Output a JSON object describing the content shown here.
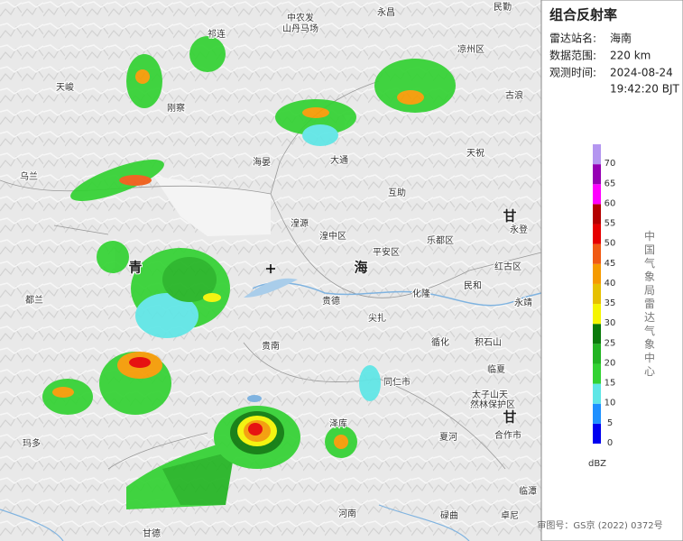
{
  "panel": {
    "title": "组合反射率",
    "rows": [
      [
        "雷达站名:",
        "海南"
      ],
      [
        "数据范围:",
        "220 km"
      ],
      [
        "观测时间:",
        "2024-08-24",
        "19:42:20 BJT"
      ]
    ],
    "legend": {
      "ticks": [
        0,
        5,
        10,
        15,
        20,
        25,
        30,
        35,
        40,
        45,
        50,
        55,
        60,
        65,
        70
      ],
      "colors": [
        "#0000f0",
        "#1e90ff",
        "#5ee6e6",
        "#32d232",
        "#22b422",
        "#0a7a0a",
        "#f5f500",
        "#e6c000",
        "#f59a00",
        "#f05a14",
        "#e60000",
        "#b40000",
        "#ff00ff",
        "#9600b4",
        "#b496f0"
      ],
      "unit": "dBZ"
    },
    "org": "中国气象局雷达气象中心",
    "footer": "审图号：GS京 (2022) 0372号"
  },
  "places": [
    "中农发",
    "山丹马场",
    "永昌",
    "民勤",
    "祁连",
    "凉州区",
    "天峻",
    "刚察",
    "古浪",
    "天祝",
    "海晏",
    "大通",
    "乌兰",
    "互助",
    "湟源",
    "湟中区",
    "永登",
    "乐都区",
    "平安区",
    "红古区",
    "民和",
    "都兰",
    "贵德",
    "化隆",
    "永靖",
    "尖扎",
    "贵南",
    "循化",
    "积石山",
    "临夏",
    "同仁市",
    "太子山天",
    "然林保护区",
    "泽库",
    "玛多",
    "夏河",
    "合作市",
    "碌曲",
    "河南",
    "临潭",
    "甘德",
    "卓尼"
  ],
  "provinces": [
    "青",
    "海",
    "甘",
    "甘"
  ]
}
